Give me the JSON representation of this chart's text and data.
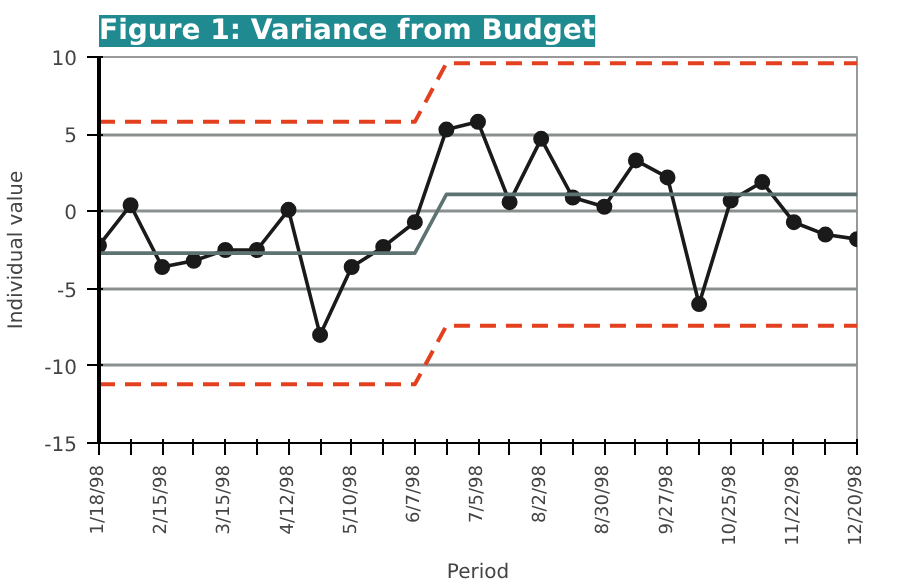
{
  "chart_data": {
    "type": "line",
    "title": "Figure 1: Variance from Budget",
    "xlabel": "Period",
    "ylabel": "Individual value",
    "x": [
      "1998-01-18",
      "1998-02-01",
      "1998-02-15",
      "1998-03-01",
      "1998-03-15",
      "1998-03-29",
      "1998-04-12",
      "1998-04-26",
      "1998-05-10",
      "1998-05-24",
      "1998-06-07",
      "1998-06-21",
      "1998-07-05",
      "1998-07-19",
      "1998-08-02",
      "1998-08-16",
      "1998-08-30",
      "1998-09-13",
      "1998-09-27",
      "1998-10-11",
      "1998-10-25",
      "1998-11-08",
      "1998-11-22",
      "1998-12-06",
      "1998-12-20"
    ],
    "series": [
      {
        "color": "#1a1a1a",
        "marker": "circle",
        "line_style": "solid",
        "values": [
          -2.2,
          0.4,
          -3.6,
          -3.2,
          -2.5,
          -2.5,
          0.1,
          -8.0,
          -3.6,
          -2.3,
          -0.7,
          5.3,
          5.8,
          0.6,
          4.7,
          0.9,
          0.3,
          3.3,
          2.2,
          -6.0,
          0.7,
          1.9,
          -0.7,
          -1.5,
          -1.8
        ]
      },
      {
        "color": "#5f7272",
        "marker": "none",
        "line_style": "solid",
        "x": [
          "1998-01-18",
          "1998-06-07",
          "1998-06-21",
          "1998-12-20"
        ],
        "values": [
          -2.7,
          -2.7,
          1.1,
          1.1
        ]
      },
      {
        "color": "#e2401f",
        "marker": "none",
        "line_style": "dashed",
        "x": [
          "1998-01-18",
          "1998-06-07",
          "1998-06-21",
          "1998-12-20"
        ],
        "values": [
          5.8,
          5.8,
          9.6,
          9.6
        ]
      },
      {
        "color": "#e2401f",
        "marker": "none",
        "line_style": "dashed",
        "x": [
          "1998-01-18",
          "1998-06-07",
          "1998-06-21",
          "1998-12-20"
        ],
        "values": [
          -11.2,
          -11.2,
          -7.4,
          -7.4
        ]
      }
    ],
    "xlim": [
      "1998-01-18",
      "1998-12-20"
    ],
    "xticks": [
      {
        "value": "1998-01-18",
        "label": "1/18/98"
      },
      {
        "value": "1998-02-01",
        "label": null
      },
      {
        "value": "1998-02-15",
        "label": "2/15/98"
      },
      {
        "value": "1998-03-01",
        "label": null
      },
      {
        "value": "1998-03-15",
        "label": "3/15/98"
      },
      {
        "value": "1998-03-29",
        "label": null
      },
      {
        "value": "1998-04-12",
        "label": "4/12/98"
      },
      {
        "value": "1998-04-26",
        "label": null
      },
      {
        "value": "1998-05-10",
        "label": "5/10/98"
      },
      {
        "value": "1998-05-24",
        "label": null
      },
      {
        "value": "1998-06-07",
        "label": "6/7/98"
      },
      {
        "value": "1998-06-21",
        "label": null
      },
      {
        "value": "1998-07-05",
        "label": "7/5/98"
      },
      {
        "value": "1998-07-19",
        "label": null
      },
      {
        "value": "1998-08-02",
        "label": "8/2/98"
      },
      {
        "value": "1998-08-16",
        "label": null
      },
      {
        "value": "1998-08-30",
        "label": "8/30/98"
      },
      {
        "value": "1998-09-13",
        "label": null
      },
      {
        "value": "1998-09-27",
        "label": "9/27/98"
      },
      {
        "value": "1998-10-11",
        "label": null
      },
      {
        "value": "1998-10-25",
        "label": "10/25/98"
      },
      {
        "value": "1998-11-08",
        "label": null
      },
      {
        "value": "1998-11-22",
        "label": "11/22/98"
      },
      {
        "value": "1998-12-06",
        "label": null
      },
      {
        "value": "1998-12-20",
        "label": "12/20/98"
      }
    ],
    "ylim": [
      -15,
      10
    ],
    "yticks": [
      -15,
      -10,
      -5,
      0,
      5,
      10
    ],
    "grid": "y"
  }
}
